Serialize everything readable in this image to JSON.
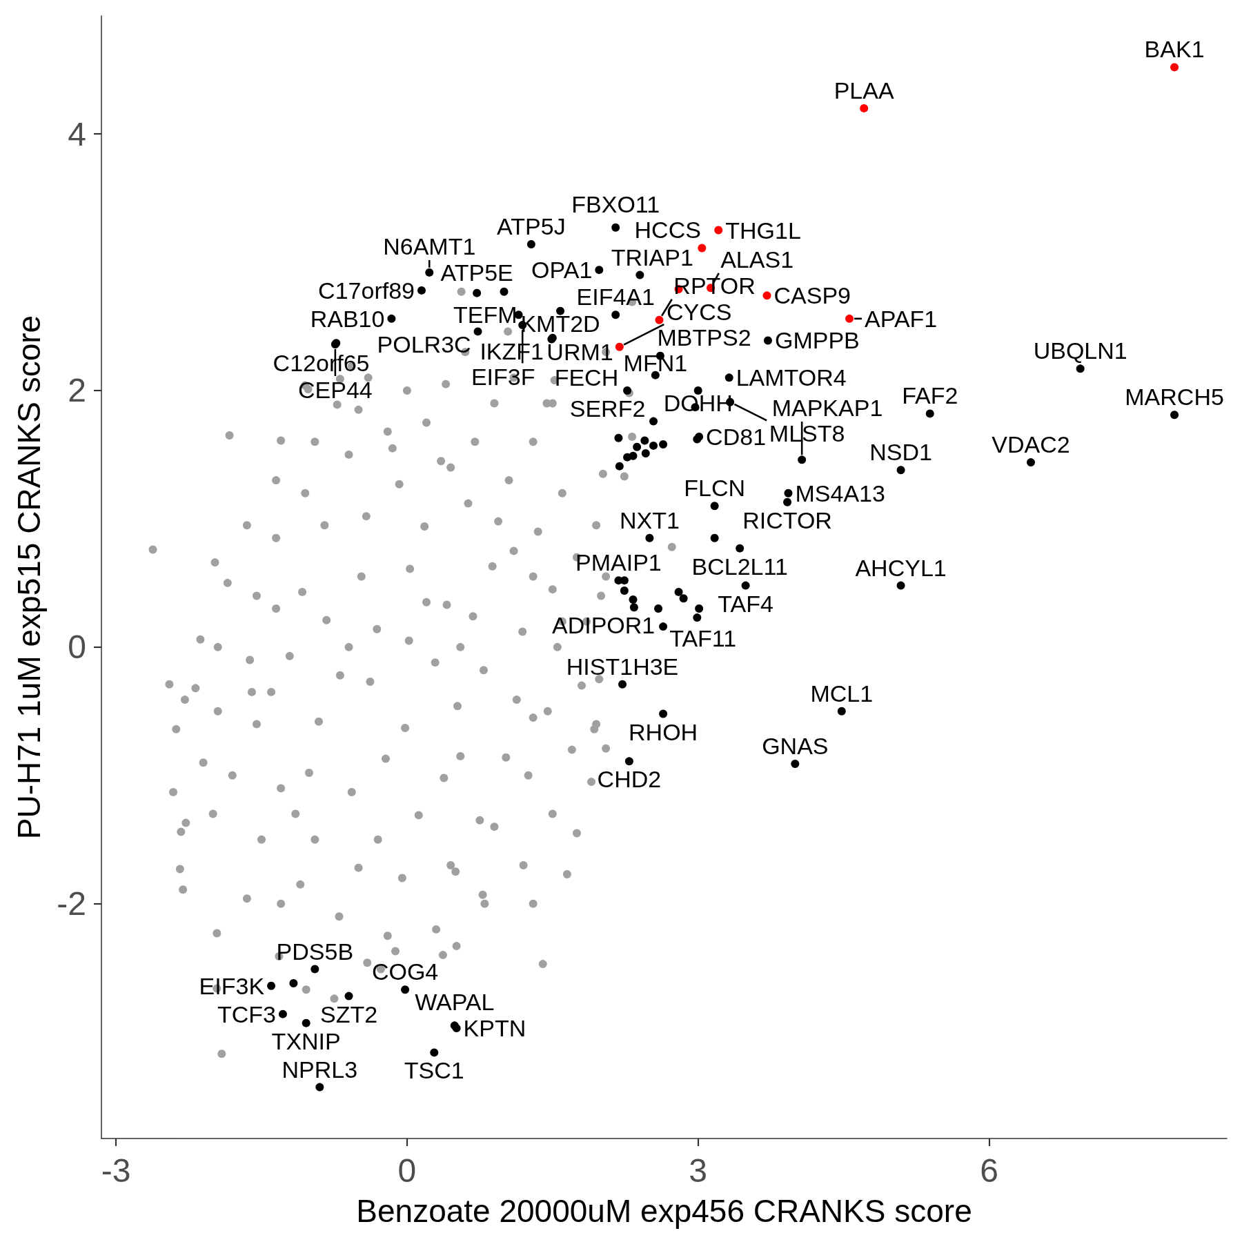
{
  "chart_data": {
    "type": "scatter",
    "xlabel": "Benzoate 20000uM exp456 CRANKS score",
    "ylabel": "PU-H71 1uM exp515 CRANKS score",
    "xlim": [
      -3.15,
      8.45
    ],
    "ylim": [
      -3.83,
      4.92
    ],
    "xticks": [
      -3,
      0,
      3,
      6
    ],
    "yticks": [
      -2,
      0,
      2,
      4
    ],
    "grid": false,
    "marker": "circle",
    "series": [
      {
        "color": "#a0a0a0",
        "x": [
          0.02,
          0.41,
          -0.38,
          0.52,
          -0.47,
          0.88,
          -0.91,
          0.18,
          -0.22,
          0.79,
          -0.83,
          1.02,
          0.12,
          -0.08,
          0.63,
          -0.57,
          1.19,
          -1.21,
          0.29,
          -0.31,
          0.68,
          -0.69,
          1.13,
          -1.08,
          -1.01,
          0.94,
          -0.42,
          0.38,
          0.03,
          -0.02,
          0.35,
          1.3,
          1.3,
          0.75,
          -0.3,
          -1.15,
          -1.4,
          -1.35,
          -0.85,
          -0.15,
          0.45,
          1.1,
          0.55,
          -0.6,
          0.55,
          0.2,
          0.2,
          0.7,
          1.05,
          1.35,
          1.5,
          1.55,
          1.45,
          1.25,
          0.9,
          0.45,
          -0.05,
          -0.5,
          -0.95,
          -1.3,
          -1.55,
          -1.62,
          -1.55,
          -1.35,
          -1.05,
          -0.6,
          -0.2,
          1.6,
          -1.6,
          0.5,
          0.4,
          0.9,
          1.3,
          1.6,
          1.75,
          1.85,
          1.8,
          1.7,
          1.5,
          1.2,
          0.8,
          0.3,
          -0.2,
          -0.7,
          -1.1,
          -1.5,
          -1.8,
          -1.95,
          -1.95,
          -1.85,
          -1.65,
          -1.35,
          -0.95,
          -0.5,
          0.0,
          1.1,
          1.5,
          2.0,
          1.95,
          -2.1,
          -2.0,
          -1.3,
          0.6,
          -0.4,
          1.3,
          -2.62,
          -1.83,
          -1.91,
          -2.45,
          -2.18,
          -2.29,
          -2.38,
          -2.41,
          -2.28,
          -2.33,
          -2.34,
          -2.31,
          -1.96,
          -1.98,
          -2.13,
          -1.96,
          -1.3,
          -1.05,
          -0.69,
          -0.72,
          1.4,
          1.65,
          0.56,
          1.04,
          2.32,
          2.05,
          -1.02,
          -0.57,
          2.73,
          2.05,
          1.93,
          2.24,
          2.02,
          2.32,
          2.29,
          -0.27,
          -0.75,
          -1.04,
          0.51,
          0.37,
          -0.12,
          -0.41,
          -1.32,
          -1.65,
          0.78,
          1.95,
          2.05,
          1.98,
          1.9,
          1.75,
          1.52,
          1.44
        ],
        "values": [
          0.05,
          0.33,
          -0.27,
          -0.46,
          0.55,
          0.63,
          -0.58,
          0.94,
          -0.87,
          -0.18,
          0.21,
          -0.86,
          -1.31,
          1.27,
          1.12,
          -1.13,
          0.12,
          -0.07,
          -0.12,
          0.14,
          0.24,
          -0.22,
          -0.41,
          0.43,
          -0.98,
          0.98,
          1.02,
          -1.02,
          0.61,
          -0.63,
          1.45,
          0.55,
          -0.55,
          -1.35,
          -1.5,
          -1.3,
          -0.35,
          0.3,
          0.95,
          1.55,
          1.4,
          0.75,
          -0.85,
          0.0,
          0.0,
          0.35,
          1.75,
          1.6,
          1.3,
          0.9,
          0.45,
          0.0,
          -0.5,
          -1.0,
          -1.4,
          -1.7,
          -1.8,
          -1.72,
          -1.5,
          -1.1,
          -0.6,
          -0.1,
          0.4,
          0.85,
          1.2,
          1.5,
          1.68,
          0.2,
          -0.35,
          -1.75,
          2.05,
          1.9,
          1.6,
          1.2,
          0.7,
          0.2,
          -0.3,
          -0.8,
          -1.3,
          -1.7,
          -2.0,
          -2.2,
          -2.25,
          -2.1,
          -1.85,
          -1.5,
          -1.0,
          -0.5,
          0.0,
          0.5,
          0.95,
          1.3,
          1.6,
          1.85,
          2.0,
          2.1,
          1.9,
          0.4,
          -0.6,
          -0.9,
          -1.3,
          -2.0,
          2.3,
          2.1,
          -2.0,
          0.76,
          1.65,
          -3.17,
          -0.29,
          -0.32,
          -0.41,
          -0.64,
          -1.13,
          -1.37,
          -1.44,
          -1.73,
          -1.89,
          -2.23,
          0.66,
          0.06,
          -2.66,
          1.61,
          2.04,
          2.09,
          1.89,
          -2.47,
          -1.77,
          2.77,
          2.46,
          2.69,
          2.3,
          2.01,
          2.19,
          0.78,
          -0.79,
          -0.64,
          1.33,
          1.35,
          1.64,
          1.98,
          -2.51,
          -2.74,
          -2.67,
          -2.33,
          -2.4,
          -2.37,
          -2.46,
          -2.41,
          -1.96,
          -1.93,
          0.95,
          0.55,
          -0.25,
          -1.05,
          -1.45,
          2.08,
          1.9
        ]
      },
      {
        "color": "#000000",
        "x": [
          1.28,
          2.15,
          0.23,
          1.98,
          2.4,
          0.15,
          0.72,
          1.0,
          -0.16,
          0.73,
          -0.73,
          -0.74,
          1.15,
          1.19,
          1.58,
          2.15,
          1.5,
          1.49,
          2.61,
          2.56,
          3.0,
          3.32,
          2.27,
          3.33,
          2.97,
          2.54,
          3.01,
          2.99,
          2.45,
          2.37,
          2.54,
          2.64,
          2.46,
          2.27,
          2.33,
          2.19,
          2.18,
          3.72,
          4.07,
          5.09,
          3.93,
          3.92,
          3.17,
          2.5,
          3.17,
          3.43,
          3.49,
          2.18,
          2.24,
          2.24,
          2.33,
          2.34,
          2.8,
          2.85,
          2.59,
          3.01,
          2.99,
          2.64,
          2.22,
          2.64,
          4.48,
          2.29,
          4.0,
          5.09,
          5.39,
          6.94,
          7.91,
          6.43,
          -1.4,
          -1.17,
          -0.95,
          -0.6,
          -1.28,
          -1.04,
          -0.02,
          0.51,
          0.49,
          0.28,
          -0.9
        ],
        "values": [
          3.14,
          3.27,
          2.92,
          2.94,
          2.9,
          2.78,
          2.76,
          2.77,
          2.56,
          2.46,
          2.37,
          2.36,
          2.59,
          2.51,
          2.62,
          2.59,
          2.41,
          2.4,
          2.27,
          2.12,
          2.0,
          2.1,
          2.0,
          1.91,
          1.87,
          1.76,
          1.64,
          1.62,
          1.61,
          1.56,
          1.57,
          1.58,
          1.51,
          1.48,
          1.49,
          1.41,
          1.63,
          2.39,
          1.46,
          1.38,
          1.2,
          1.13,
          1.1,
          0.85,
          0.85,
          0.77,
          0.48,
          0.52,
          0.52,
          0.44,
          0.37,
          0.31,
          0.43,
          0.38,
          0.3,
          0.3,
          0.23,
          0.16,
          -0.29,
          -0.52,
          -0.5,
          -0.89,
          -0.91,
          0.48,
          1.82,
          2.17,
          1.81,
          1.44,
          -2.64,
          -2.62,
          -2.51,
          -2.72,
          -2.86,
          -2.93,
          -2.67,
          -2.97,
          -2.95,
          -3.16,
          -3.43
        ]
      },
      {
        "color": "#ff0000",
        "x": [
          7.91,
          4.71,
          3.21,
          3.04,
          3.13,
          3.71,
          2.8,
          2.6,
          4.56,
          2.19
        ],
        "values": [
          4.52,
          4.2,
          3.25,
          3.11,
          2.8,
          2.74,
          2.79,
          2.55,
          2.56,
          2.34
        ]
      }
    ],
    "annotations": [
      {
        "text": "BAK1",
        "x": 7.91,
        "y": 4.52
      },
      {
        "text": "PLAA",
        "x": 4.71,
        "y": 4.2
      },
      {
        "text": "ATP5J",
        "x": 1.28,
        "y": 3.14
      },
      {
        "text": "FBXO11",
        "x": 2.15,
        "y": 3.27
      },
      {
        "text": "THG1L",
        "x": 3.21,
        "y": 3.25
      },
      {
        "text": "N6AMT1",
        "x": 0.23,
        "y": 2.92
      },
      {
        "text": "TEFM",
        "x": 1.15,
        "y": 2.59
      },
      {
        "text": "OPA1",
        "x": 1.98,
        "y": 2.94
      },
      {
        "text": "TRIAP1",
        "x": 2.4,
        "y": 2.9
      },
      {
        "text": "ALAS1",
        "x": 3.13,
        "y": 2.8
      },
      {
        "text": "C17orf89",
        "x": 0.15,
        "y": 2.78
      },
      {
        "text": "ATP5E",
        "x": 0.72,
        "y": 2.76
      },
      {
        "text": "HCCS",
        "x": 3.04,
        "y": 3.11
      },
      {
        "text": "CASP9",
        "x": 3.71,
        "y": 2.74
      },
      {
        "text": "KMT2D",
        "x": 1.58,
        "y": 2.62
      },
      {
        "text": "EIF4A1",
        "x": 2.15,
        "y": 2.59
      },
      {
        "text": "RAB10",
        "x": -0.16,
        "y": 2.56
      },
      {
        "text": "POLR3C",
        "x": 0.73,
        "y": 2.46
      },
      {
        "text": "RPTOR",
        "x": 2.6,
        "y": 2.55
      },
      {
        "text": "GMPPB",
        "x": 3.72,
        "y": 2.39
      },
      {
        "text": "IKZF1",
        "x": 1.5,
        "y": 2.41
      },
      {
        "text": "CYCS",
        "x": 2.19,
        "y": 2.34
      },
      {
        "text": "APAF1",
        "x": 4.56,
        "y": 2.56
      },
      {
        "text": "C12orf65",
        "x": -0.73,
        "y": 2.37
      },
      {
        "text": "MBTPS2",
        "x": 2.61,
        "y": 2.27
      },
      {
        "text": "CEP44",
        "x": -0.74,
        "y": 2.36
      },
      {
        "text": "EIF3F",
        "x": 1.19,
        "y": 2.51
      },
      {
        "text": "MFN1",
        "x": 2.56,
        "y": 2.12
      },
      {
        "text": "DOHH",
        "x": 3.0,
        "y": 2.0
      },
      {
        "text": "LAMTOR4",
        "x": 3.32,
        "y": 2.1
      },
      {
        "text": "UBQLN1",
        "x": 6.94,
        "y": 2.17
      },
      {
        "text": "URM1",
        "x": 1.49,
        "y": 2.4
      },
      {
        "text": "FAF2",
        "x": 5.39,
        "y": 1.82
      },
      {
        "text": "SERF2",
        "x": 2.54,
        "y": 1.76
      },
      {
        "text": "MLST8",
        "x": 3.33,
        "y": 1.91
      },
      {
        "text": "MARCH5",
        "x": 7.91,
        "y": 1.81
      },
      {
        "text": "MAPKAP1",
        "x": 4.07,
        "y": 1.46
      },
      {
        "text": "FECH",
        "x": 2.27,
        "y": 2.0
      },
      {
        "text": "CD81",
        "x": 3.01,
        "y": 1.64
      },
      {
        "text": "MS4A13",
        "x": 3.93,
        "y": 1.2
      },
      {
        "text": "VDAC2",
        "x": 6.43,
        "y": 1.44
      },
      {
        "text": "NSD1",
        "x": 5.09,
        "y": 1.38
      },
      {
        "text": "NXT1",
        "x": 2.5,
        "y": 0.85
      },
      {
        "text": "FLCN",
        "x": 3.17,
        "y": 1.1
      },
      {
        "text": "RICTOR",
        "x": 3.92,
        "y": 1.13
      },
      {
        "text": "PMAIP1",
        "x": 2.18,
        "y": 0.52
      },
      {
        "text": "BCL2L11",
        "x": 3.43,
        "y": 0.77
      },
      {
        "text": "AHCYL1",
        "x": 5.09,
        "y": 0.48
      },
      {
        "text": "ADIPOR1",
        "x": 2.34,
        "y": 0.31
      },
      {
        "text": "TAF4",
        "x": 3.49,
        "y": 0.48
      },
      {
        "text": "TAF11",
        "x": 2.64,
        "y": 0.16
      },
      {
        "text": "HIST1H3E",
        "x": 2.22,
        "y": -0.29
      },
      {
        "text": "MCL1",
        "x": 4.48,
        "y": -0.5
      },
      {
        "text": "RHOH",
        "x": 2.64,
        "y": -0.52
      },
      {
        "text": "CHD2",
        "x": 2.29,
        "y": -0.89
      },
      {
        "text": "GNAS",
        "x": 4.0,
        "y": -0.91
      },
      {
        "text": "PDS5B",
        "x": -0.95,
        "y": -2.51
      },
      {
        "text": "EIF3K",
        "x": -1.4,
        "y": -2.64
      },
      {
        "text": "COG4",
        "x": -0.02,
        "y": -2.67
      },
      {
        "text": "SZT2",
        "x": -0.6,
        "y": -2.72
      },
      {
        "text": "TCF3",
        "x": -1.28,
        "y": -2.86
      },
      {
        "text": "KPTN",
        "x": 0.51,
        "y": -2.97
      },
      {
        "text": "WAPAL",
        "x": 0.49,
        "y": -2.95
      },
      {
        "text": "TXNIP",
        "x": -1.04,
        "y": -2.93
      },
      {
        "text": "TSC1",
        "x": 0.28,
        "y": -3.16
      },
      {
        "text": "NPRL3",
        "x": -0.9,
        "y": -3.43
      }
    ]
  }
}
